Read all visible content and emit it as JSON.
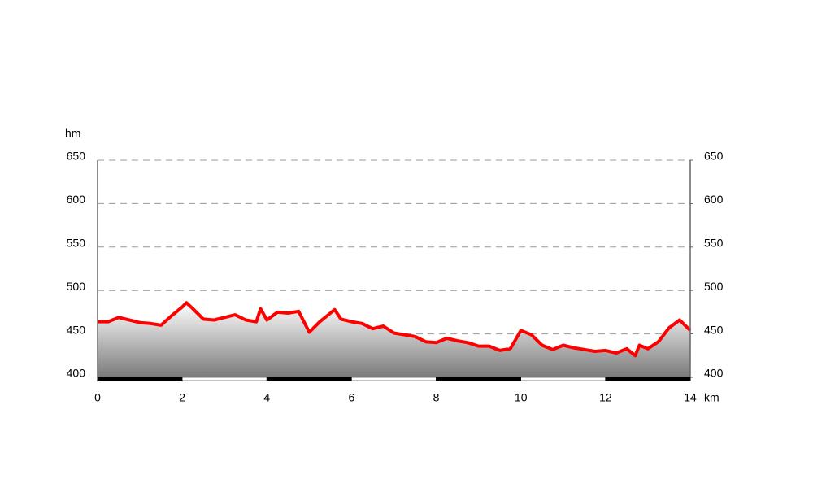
{
  "chart_data": {
    "type": "area",
    "x_label": "km",
    "y_label": "hm",
    "x": [
      0,
      0.25,
      0.5,
      0.75,
      1,
      1.25,
      1.5,
      1.75,
      2,
      2.1,
      2.25,
      2.5,
      2.75,
      3,
      3.25,
      3.5,
      3.75,
      3.85,
      4,
      4.25,
      4.5,
      4.75,
      5,
      5.25,
      5.5,
      5.6,
      5.75,
      6,
      6.25,
      6.5,
      6.75,
      7,
      7.25,
      7.5,
      7.75,
      8,
      8.25,
      8.5,
      8.75,
      9,
      9.25,
      9.5,
      9.75,
      10,
      10.25,
      10.5,
      10.75,
      11,
      11.25,
      11.5,
      11.75,
      12,
      12.25,
      12.5,
      12.7,
      12.8,
      13,
      13.25,
      13.5,
      13.75,
      14
    ],
    "values": [
      464,
      464,
      469,
      466,
      463,
      462,
      460,
      471,
      481,
      486,
      479,
      467,
      466,
      469,
      472,
      466,
      464,
      479,
      466,
      475,
      474,
      476,
      452,
      464,
      474,
      478,
      467,
      464,
      462,
      456,
      459,
      451,
      449,
      447,
      441,
      440,
      445,
      442,
      440,
      436,
      436,
      431,
      433,
      454,
      449,
      437,
      432,
      437,
      434,
      432,
      430,
      431,
      428,
      433,
      425,
      437,
      433,
      441,
      457,
      466,
      454
    ],
    "color": "#ff0000",
    "xlim": [
      0,
      14
    ],
    "xticks": [
      0,
      2,
      4,
      6,
      8,
      10,
      12,
      14
    ],
    "ylim": [
      400,
      650
    ],
    "yticks": [
      400,
      450,
      500,
      550,
      600,
      650
    ],
    "y2lim": [
      400,
      650
    ],
    "y2ticks": [
      400,
      450,
      500,
      550,
      600,
      650
    ],
    "grid": true
  }
}
